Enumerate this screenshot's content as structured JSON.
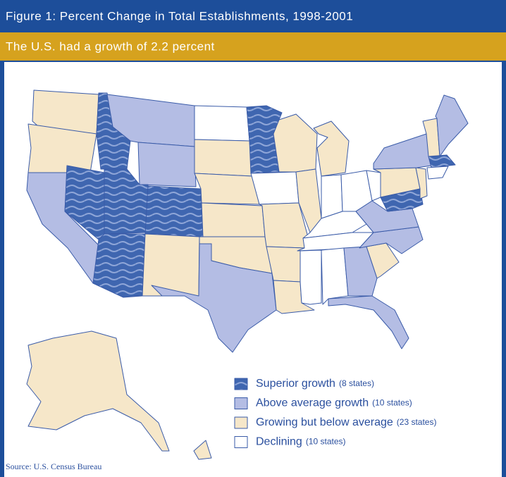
{
  "header": {
    "title": "Figure 1: Percent Change in Total Establishments, 1998-2001",
    "subtitle": "The U.S. had a growth of 2.2 percent"
  },
  "legend": [
    {
      "label": "Superior growth",
      "count": "(8 states)"
    },
    {
      "label": "Above average growth",
      "count": "(10 states)"
    },
    {
      "label": "Growing but below average",
      "count": "(23 states)"
    },
    {
      "label": "Declining",
      "count": "(10 states)"
    }
  ],
  "source": "Source: U.S. Census Bureau"
}
